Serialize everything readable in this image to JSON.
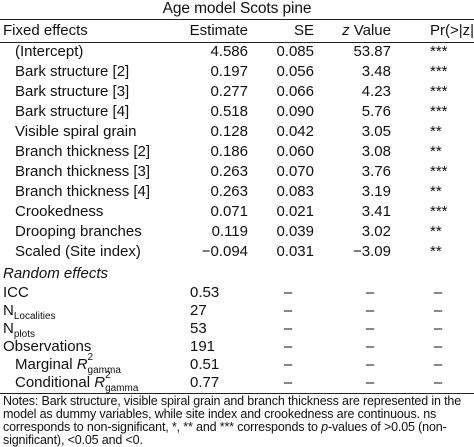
{
  "title": "Age model Scots pine",
  "headers": {
    "col0": "Fixed effects",
    "col1": "Estimate",
    "col2": "SE",
    "col3_italic": "z",
    "col3_rest": " Value",
    "col4": "Pr(>|z|)"
  },
  "fixed_rows": [
    {
      "label": "(Intercept)",
      "estimate": "4.586",
      "se": "0.085",
      "z": "53.87",
      "p": "***"
    },
    {
      "label": "Bark structure [2]",
      "estimate": "0.197",
      "se": "0.056",
      "z": "3.48",
      "p": "***"
    },
    {
      "label": "Bark structure [3]",
      "estimate": "0.277",
      "se": "0.066",
      "z": "4.23",
      "p": "***"
    },
    {
      "label": "Bark structure [4]",
      "estimate": "0.518",
      "se": "0.090",
      "z": "5.76",
      "p": "***"
    },
    {
      "label": "Visible spiral grain",
      "estimate": "0.128",
      "se": "0.042",
      "z": "3.05",
      "p": "**"
    },
    {
      "label": "Branch thickness [2]",
      "estimate": "0.186",
      "se": "0.060",
      "z": "3.08",
      "p": "**"
    },
    {
      "label": "Branch thickness [3]",
      "estimate": "0.263",
      "se": "0.070",
      "z": "3.76",
      "p": "***"
    },
    {
      "label": "Branch thickness [4]",
      "estimate": "0.263",
      "se": "0.083",
      "z": "3.19",
      "p": "**"
    },
    {
      "label": "Crookedness",
      "estimate": "0.071",
      "se": "0.021",
      "z": "3.41",
      "p": "***"
    },
    {
      "label": "Drooping branches",
      "estimate": "0.119",
      "se": "0.039",
      "z": "3.02",
      "p": "**"
    },
    {
      "label": "Scaled (Site index)",
      "estimate": "−0.094",
      "se": "0.031",
      "z": "−3.09",
      "p": "**"
    }
  ],
  "random_effects_label": "Random effects",
  "dash": "–",
  "random_rows": {
    "icc": {
      "label": "ICC",
      "value": "0.53"
    },
    "n_localities": {
      "label": "N",
      "sub": "Localities",
      "value": "27"
    },
    "n_plots": {
      "label": "N",
      "sub": "plots",
      "value": "53"
    },
    "observations": {
      "label": "Observations",
      "value": "191"
    },
    "marginal": {
      "label": "Marginal ",
      "italic": "R",
      "sup": "2",
      "sub": "gamma",
      "value": "0.51"
    },
    "conditional": {
      "label": "Conditional ",
      "italic": "R",
      "sup": "2",
      "sub": "gamma",
      "value": "0.77"
    }
  },
  "notes": {
    "part1": "Notes: Bark structure, visible spiral grain and branch thickness are represented in the model as dummy variables, while site index and crookedness are continuous. ns corresponds to non-significant, *, ** and *** corresponds to ",
    "p_italic": "p",
    "part2": "-values of >0.05 (non-significant), <0.05 and <0."
  }
}
